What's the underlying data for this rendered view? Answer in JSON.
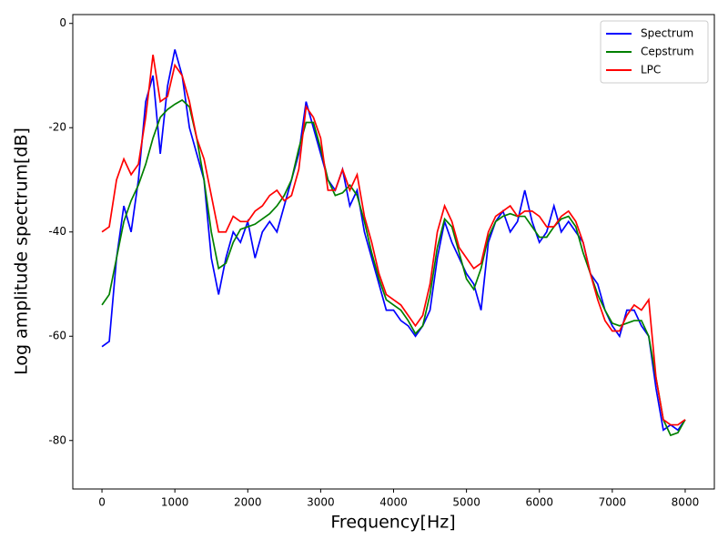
{
  "chart_data": {
    "type": "line",
    "xlabel": "Frequency[Hz]",
    "ylabel": "Log amplitude spectrum[dB]",
    "x": [
      0,
      100,
      200,
      300,
      400,
      500,
      600,
      700,
      800,
      900,
      1000,
      1100,
      1200,
      1300,
      1400,
      1500,
      1600,
      1700,
      1800,
      1900,
      2000,
      2100,
      2200,
      2300,
      2400,
      2500,
      2600,
      2700,
      2800,
      2900,
      3000,
      3100,
      3200,
      3300,
      3400,
      3500,
      3600,
      3700,
      3800,
      3900,
      4000,
      4100,
      4200,
      4300,
      4400,
      4500,
      4600,
      4700,
      4800,
      4900,
      5000,
      5100,
      5200,
      5300,
      5400,
      5500,
      5600,
      5700,
      5800,
      5900,
      6000,
      6100,
      6200,
      6300,
      6400,
      6500,
      6600,
      6700,
      6800,
      6900,
      7000,
      7100,
      7200,
      7300,
      7400,
      7500,
      7600,
      7700,
      7800,
      7900,
      8000
    ],
    "series": [
      {
        "name": "Spectrum",
        "color": "#0000ff",
        "values": [
          -62,
          -61,
          -45,
          -35,
          -40,
          -30,
          -15,
          -10,
          -25,
          -12,
          -5,
          -10,
          -20,
          -25,
          -30,
          -45,
          -52,
          -45,
          -40,
          -42,
          -38,
          -45,
          -40,
          -38,
          -40,
          -35,
          -30,
          -25,
          -15,
          -20,
          -25,
          -30,
          -32,
          -28,
          -35,
          -32,
          -40,
          -45,
          -50,
          -55,
          -55,
          -57,
          -58,
          -60,
          -58,
          -55,
          -45,
          -38,
          -42,
          -45,
          -48,
          -50,
          -55,
          -42,
          -38,
          -36,
          -40,
          -38,
          -32,
          -38,
          -42,
          -40,
          -35,
          -40,
          -38,
          -40,
          -42,
          -48,
          -50,
          -55,
          -58,
          -60,
          -55,
          -55,
          -58,
          -60,
          -70,
          -78,
          -77,
          -78,
          -76
        ]
      },
      {
        "name": "Cepstrum",
        "color": "#008000",
        "values": [
          -54,
          -52,
          -45,
          -38,
          -34,
          -31,
          -27,
          -22,
          -18,
          -16.5,
          -15.5,
          -14.7,
          -16,
          -22,
          -30,
          -40,
          -47,
          -46,
          -42,
          -39.5,
          -39,
          -38.5,
          -37.5,
          -36.5,
          -35,
          -33,
          -30,
          -24,
          -19,
          -19,
          -24,
          -30,
          -33,
          -32.5,
          -31,
          -33,
          -38,
          -44,
          -49,
          -53,
          -54,
          -55,
          -57,
          -59.5,
          -58,
          -52,
          -43,
          -37.5,
          -39,
          -44,
          -49,
          -51,
          -47,
          -41,
          -38,
          -37,
          -36.5,
          -37,
          -37,
          -39,
          -41,
          -41,
          -39,
          -37.5,
          -37,
          -39,
          -44,
          -48,
          -52,
          -55,
          -57.5,
          -58,
          -57.5,
          -57,
          -57,
          -60,
          -68,
          -76,
          -79,
          -78.5,
          -76
        ]
      },
      {
        "name": "LPC",
        "color": "#ff0000",
        "values": [
          -40,
          -39,
          -30,
          -26,
          -29,
          -27,
          -18,
          -6,
          -15,
          -14,
          -8,
          -10,
          -15,
          -22,
          -26,
          -33,
          -40,
          -40,
          -37,
          -38,
          -38,
          -36,
          -35,
          -33,
          -32,
          -34,
          -33,
          -28,
          -16,
          -18,
          -22,
          -32,
          -32,
          -28,
          -32,
          -29,
          -37,
          -42,
          -48,
          -52,
          -53,
          -54,
          -56,
          -58,
          -56,
          -50,
          -40,
          -35,
          -38,
          -43,
          -45,
          -47,
          -46,
          -40,
          -37,
          -36,
          -35,
          -37,
          -36,
          -36,
          -37,
          -39,
          -39,
          -37,
          -36,
          -38,
          -42,
          -48,
          -53,
          -57,
          -59,
          -59,
          -56,
          -54,
          -55,
          -53,
          -68,
          -76,
          -77,
          -77,
          -76
        ]
      }
    ],
    "xlim": [
      -400,
      8400
    ],
    "ylim": [
      -89.3,
      1.7
    ],
    "xticks": [
      0,
      1000,
      2000,
      3000,
      4000,
      5000,
      6000,
      7000,
      8000
    ],
    "yticks": [
      -80,
      -60,
      -40,
      -20,
      0
    ],
    "legend": "upper right",
    "grid": false
  }
}
